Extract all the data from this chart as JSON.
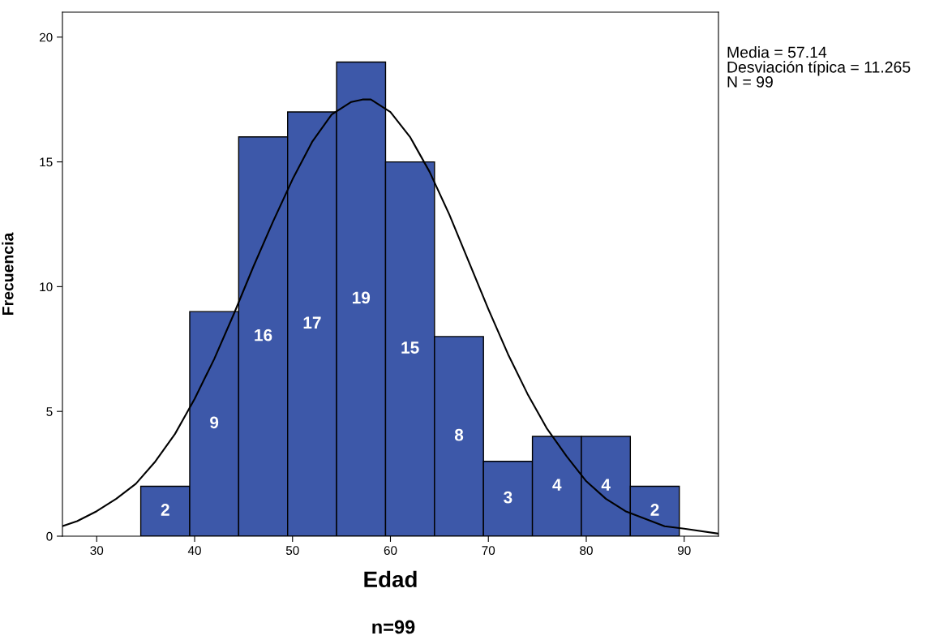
{
  "chart_data": {
    "type": "histogram",
    "xlabel": "Edad",
    "ylabel": "Frecuencia",
    "bins": [
      34.5,
      39.5,
      44.5,
      49.5,
      54.5,
      59.5,
      64.5,
      69.5,
      74.5,
      79.5,
      84.5,
      89.5
    ],
    "values": [
      2,
      9,
      16,
      17,
      19,
      15,
      8,
      3,
      4,
      4,
      2
    ],
    "color": "#3d58a9",
    "value_labels": [
      "2",
      "9",
      "16",
      "17",
      "19",
      "15",
      "8",
      "3",
      "4",
      "4",
      "2"
    ],
    "series": [
      {
        "type": "line",
        "color": "#000000",
        "x": [
          26.5,
          28,
          30,
          32,
          34,
          36,
          38,
          40,
          42,
          44,
          46,
          48,
          50,
          52,
          54,
          56,
          57.14,
          58,
          60,
          62,
          64,
          66,
          68,
          70,
          72,
          74,
          76,
          78,
          80,
          82,
          84,
          86,
          88,
          90,
          93.5
        ],
        "values": [
          0.4,
          0.6,
          1.0,
          1.5,
          2.1,
          3.0,
          4.1,
          5.5,
          7.1,
          8.9,
          10.8,
          12.6,
          14.3,
          15.8,
          16.9,
          17.4,
          17.5,
          17.5,
          17.0,
          16.0,
          14.6,
          12.9,
          11.0,
          9.1,
          7.3,
          5.7,
          4.3,
          3.2,
          2.2,
          1.5,
          1.0,
          0.7,
          0.4,
          0.3,
          0.1
        ]
      }
    ],
    "xlim": [
      26.5,
      93.5
    ],
    "ylim": [
      0,
      21
    ],
    "xticks": [
      30,
      40,
      50,
      60,
      70,
      80,
      90
    ],
    "yticks": [
      0,
      5,
      10,
      15,
      20
    ],
    "grid": false,
    "legend": false,
    "annotations": [
      "Media = 57.14\nDesviación típica = 11.265\nN = 99",
      "n=99"
    ]
  }
}
